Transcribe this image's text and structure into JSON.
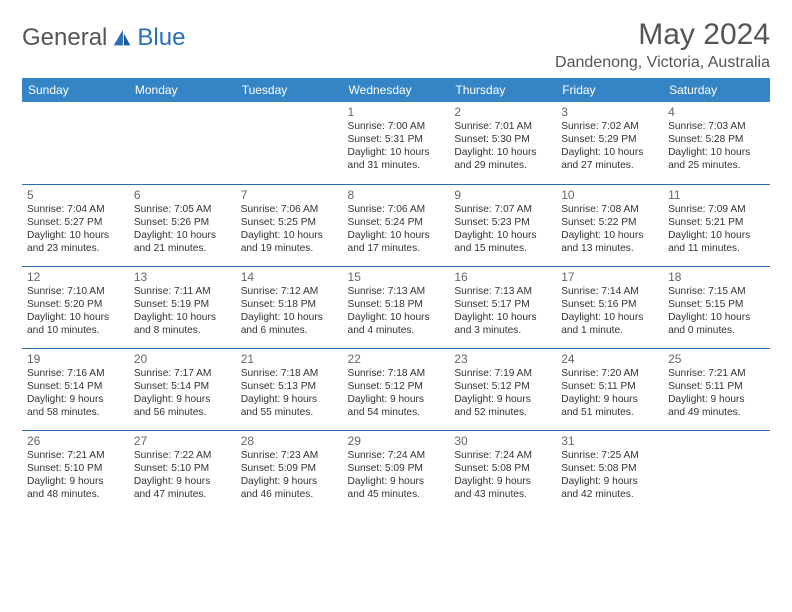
{
  "brand": {
    "general": "General",
    "blue": "Blue"
  },
  "title": "May 2024",
  "location": "Dandenong, Victoria, Australia",
  "colors": {
    "header_bg": "#3585c6",
    "header_text": "#ffffff",
    "border": "#2a6fb5",
    "text": "#333333",
    "title_text": "#555555",
    "logo_blue": "#2a6fb5",
    "logo_gray": "#555555",
    "page_bg": "#ffffff"
  },
  "day_headers": [
    "Sunday",
    "Monday",
    "Tuesday",
    "Wednesday",
    "Thursday",
    "Friday",
    "Saturday"
  ],
  "weeks": [
    [
      null,
      null,
      null,
      {
        "n": "1",
        "sr": "Sunrise: 7:00 AM",
        "ss": "Sunset: 5:31 PM",
        "d1": "Daylight: 10 hours",
        "d2": "and 31 minutes."
      },
      {
        "n": "2",
        "sr": "Sunrise: 7:01 AM",
        "ss": "Sunset: 5:30 PM",
        "d1": "Daylight: 10 hours",
        "d2": "and 29 minutes."
      },
      {
        "n": "3",
        "sr": "Sunrise: 7:02 AM",
        "ss": "Sunset: 5:29 PM",
        "d1": "Daylight: 10 hours",
        "d2": "and 27 minutes."
      },
      {
        "n": "4",
        "sr": "Sunrise: 7:03 AM",
        "ss": "Sunset: 5:28 PM",
        "d1": "Daylight: 10 hours",
        "d2": "and 25 minutes."
      }
    ],
    [
      {
        "n": "5",
        "sr": "Sunrise: 7:04 AM",
        "ss": "Sunset: 5:27 PM",
        "d1": "Daylight: 10 hours",
        "d2": "and 23 minutes."
      },
      {
        "n": "6",
        "sr": "Sunrise: 7:05 AM",
        "ss": "Sunset: 5:26 PM",
        "d1": "Daylight: 10 hours",
        "d2": "and 21 minutes."
      },
      {
        "n": "7",
        "sr": "Sunrise: 7:06 AM",
        "ss": "Sunset: 5:25 PM",
        "d1": "Daylight: 10 hours",
        "d2": "and 19 minutes."
      },
      {
        "n": "8",
        "sr": "Sunrise: 7:06 AM",
        "ss": "Sunset: 5:24 PM",
        "d1": "Daylight: 10 hours",
        "d2": "and 17 minutes."
      },
      {
        "n": "9",
        "sr": "Sunrise: 7:07 AM",
        "ss": "Sunset: 5:23 PM",
        "d1": "Daylight: 10 hours",
        "d2": "and 15 minutes."
      },
      {
        "n": "10",
        "sr": "Sunrise: 7:08 AM",
        "ss": "Sunset: 5:22 PM",
        "d1": "Daylight: 10 hours",
        "d2": "and 13 minutes."
      },
      {
        "n": "11",
        "sr": "Sunrise: 7:09 AM",
        "ss": "Sunset: 5:21 PM",
        "d1": "Daylight: 10 hours",
        "d2": "and 11 minutes."
      }
    ],
    [
      {
        "n": "12",
        "sr": "Sunrise: 7:10 AM",
        "ss": "Sunset: 5:20 PM",
        "d1": "Daylight: 10 hours",
        "d2": "and 10 minutes."
      },
      {
        "n": "13",
        "sr": "Sunrise: 7:11 AM",
        "ss": "Sunset: 5:19 PM",
        "d1": "Daylight: 10 hours",
        "d2": "and 8 minutes."
      },
      {
        "n": "14",
        "sr": "Sunrise: 7:12 AM",
        "ss": "Sunset: 5:18 PM",
        "d1": "Daylight: 10 hours",
        "d2": "and 6 minutes."
      },
      {
        "n": "15",
        "sr": "Sunrise: 7:13 AM",
        "ss": "Sunset: 5:18 PM",
        "d1": "Daylight: 10 hours",
        "d2": "and 4 minutes."
      },
      {
        "n": "16",
        "sr": "Sunrise: 7:13 AM",
        "ss": "Sunset: 5:17 PM",
        "d1": "Daylight: 10 hours",
        "d2": "and 3 minutes."
      },
      {
        "n": "17",
        "sr": "Sunrise: 7:14 AM",
        "ss": "Sunset: 5:16 PM",
        "d1": "Daylight: 10 hours",
        "d2": "and 1 minute."
      },
      {
        "n": "18",
        "sr": "Sunrise: 7:15 AM",
        "ss": "Sunset: 5:15 PM",
        "d1": "Daylight: 10 hours",
        "d2": "and 0 minutes."
      }
    ],
    [
      {
        "n": "19",
        "sr": "Sunrise: 7:16 AM",
        "ss": "Sunset: 5:14 PM",
        "d1": "Daylight: 9 hours",
        "d2": "and 58 minutes."
      },
      {
        "n": "20",
        "sr": "Sunrise: 7:17 AM",
        "ss": "Sunset: 5:14 PM",
        "d1": "Daylight: 9 hours",
        "d2": "and 56 minutes."
      },
      {
        "n": "21",
        "sr": "Sunrise: 7:18 AM",
        "ss": "Sunset: 5:13 PM",
        "d1": "Daylight: 9 hours",
        "d2": "and 55 minutes."
      },
      {
        "n": "22",
        "sr": "Sunrise: 7:18 AM",
        "ss": "Sunset: 5:12 PM",
        "d1": "Daylight: 9 hours",
        "d2": "and 54 minutes."
      },
      {
        "n": "23",
        "sr": "Sunrise: 7:19 AM",
        "ss": "Sunset: 5:12 PM",
        "d1": "Daylight: 9 hours",
        "d2": "and 52 minutes."
      },
      {
        "n": "24",
        "sr": "Sunrise: 7:20 AM",
        "ss": "Sunset: 5:11 PM",
        "d1": "Daylight: 9 hours",
        "d2": "and 51 minutes."
      },
      {
        "n": "25",
        "sr": "Sunrise: 7:21 AM",
        "ss": "Sunset: 5:11 PM",
        "d1": "Daylight: 9 hours",
        "d2": "and 49 minutes."
      }
    ],
    [
      {
        "n": "26",
        "sr": "Sunrise: 7:21 AM",
        "ss": "Sunset: 5:10 PM",
        "d1": "Daylight: 9 hours",
        "d2": "and 48 minutes."
      },
      {
        "n": "27",
        "sr": "Sunrise: 7:22 AM",
        "ss": "Sunset: 5:10 PM",
        "d1": "Daylight: 9 hours",
        "d2": "and 47 minutes."
      },
      {
        "n": "28",
        "sr": "Sunrise: 7:23 AM",
        "ss": "Sunset: 5:09 PM",
        "d1": "Daylight: 9 hours",
        "d2": "and 46 minutes."
      },
      {
        "n": "29",
        "sr": "Sunrise: 7:24 AM",
        "ss": "Sunset: 5:09 PM",
        "d1": "Daylight: 9 hours",
        "d2": "and 45 minutes."
      },
      {
        "n": "30",
        "sr": "Sunrise: 7:24 AM",
        "ss": "Sunset: 5:08 PM",
        "d1": "Daylight: 9 hours",
        "d2": "and 43 minutes."
      },
      {
        "n": "31",
        "sr": "Sunrise: 7:25 AM",
        "ss": "Sunset: 5:08 PM",
        "d1": "Daylight: 9 hours",
        "d2": "and 42 minutes."
      },
      null
    ]
  ]
}
